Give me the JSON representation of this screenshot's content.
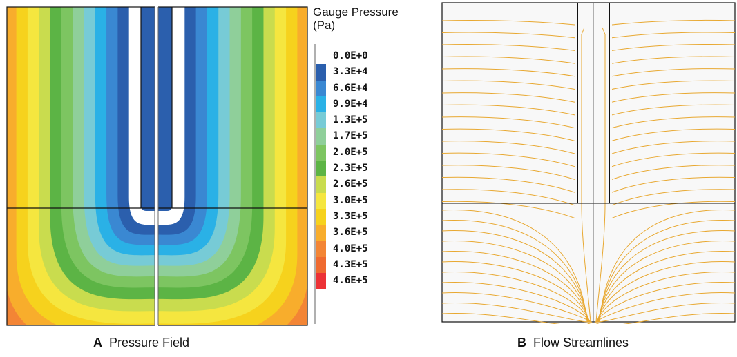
{
  "legend": {
    "title_line1": "Gauge Pressure",
    "title_line2": "(Pa)",
    "entries": [
      {
        "label": "0.0E+0",
        "color": "#ffffff"
      },
      {
        "label": "3.3E+4",
        "color": "#2b5fad"
      },
      {
        "label": "6.6E+4",
        "color": "#3a88d2"
      },
      {
        "label": "9.9E+4",
        "color": "#2ab1e6"
      },
      {
        "label": "1.3E+5",
        "color": "#77cbd6"
      },
      {
        "label": "1.7E+5",
        "color": "#8fcf9a"
      },
      {
        "label": "2.0E+5",
        "color": "#7dc561"
      },
      {
        "label": "2.3E+5",
        "color": "#5cb445"
      },
      {
        "label": "2.6E+5",
        "color": "#c9dc4e"
      },
      {
        "label": "3.0E+5",
        "color": "#f5e63f"
      },
      {
        "label": "3.3E+5",
        "color": "#f6d21d"
      },
      {
        "label": "3.6E+5",
        "color": "#f8ad2c"
      },
      {
        "label": "4.0E+5",
        "color": "#f38535"
      },
      {
        "label": "4.3E+5",
        "color": "#ef6a30"
      },
      {
        "label": "4.6E+5",
        "color": "#ec3236"
      }
    ]
  },
  "captions": {
    "a_letter": "A",
    "a_text": "Pressure Field",
    "b_letter": "B",
    "b_text": "Flow Streamlines"
  },
  "streamline_color": "#e8a830"
}
